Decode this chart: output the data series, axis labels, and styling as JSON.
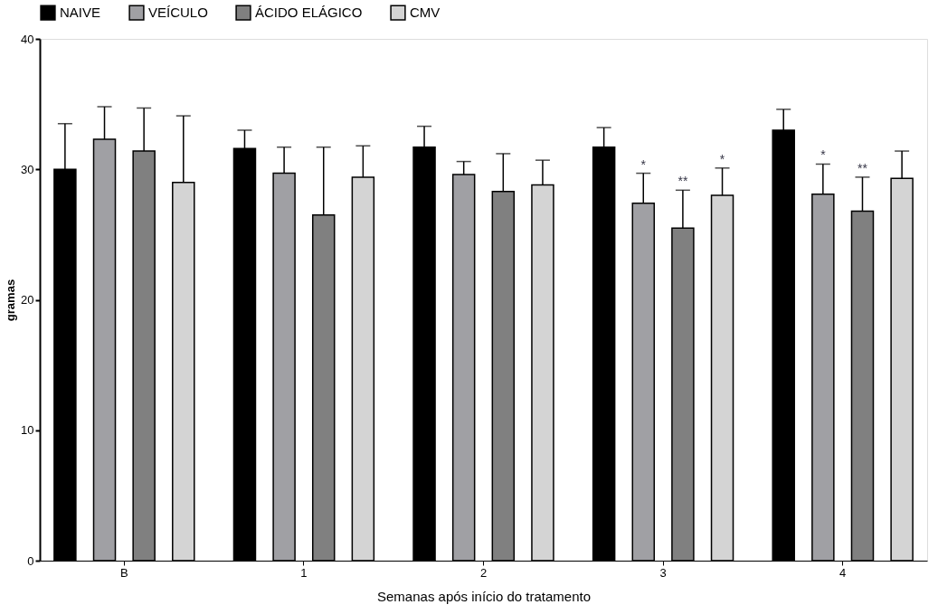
{
  "chart_data": {
    "type": "bar",
    "xlabel": "Semanas após início do tratamento",
    "ylabel": "gramas",
    "categories": [
      "B",
      "1",
      "2",
      "3",
      "4"
    ],
    "series": [
      {
        "name": "NAIVE",
        "color": "#000000",
        "values": [
          30.0,
          31.6,
          31.7,
          31.7,
          33.0
        ],
        "errors": [
          [
            30.0,
            33.5
          ],
          [
            31.6,
            33.0
          ],
          [
            31.7,
            33.3
          ],
          [
            31.7,
            33.2
          ],
          [
            33.0,
            34.6
          ]
        ]
      },
      {
        "name": "VEÍCULO",
        "color": "#a0a0a4",
        "values": [
          32.3,
          29.7,
          29.6,
          27.4,
          28.1
        ],
        "errors": [
          [
            32.3,
            34.8
          ],
          [
            29.7,
            31.7
          ],
          [
            29.6,
            30.6
          ],
          [
            27.4,
            29.7
          ],
          [
            28.1,
            30.4
          ]
        ],
        "value_labels": [
          null,
          null,
          null,
          "*",
          "*"
        ]
      },
      {
        "name": "ÁCIDO ELÁGICO",
        "color": "#808080",
        "values": [
          31.4,
          26.5,
          28.3,
          25.5,
          26.8
        ],
        "errors": [
          [
            31.4,
            34.7
          ],
          [
            26.5,
            31.7
          ],
          [
            28.3,
            31.2
          ],
          [
            25.5,
            28.4
          ],
          [
            26.8,
            29.4
          ]
        ],
        "value_labels": [
          null,
          null,
          null,
          "**",
          "**"
        ]
      },
      {
        "name": "CMV",
        "color": "#d4d4d4",
        "values": [
          29.0,
          29.4,
          28.8,
          28.0,
          29.3
        ],
        "errors": [
          [
            29.0,
            34.1
          ],
          [
            29.4,
            31.8
          ],
          [
            28.8,
            30.7
          ],
          [
            28.0,
            30.1
          ],
          [
            29.3,
            31.4
          ]
        ],
        "value_labels": [
          null,
          null,
          null,
          "*",
          null
        ]
      }
    ],
    "ylim": [
      0,
      40
    ],
    "yticks": [
      0,
      10,
      20,
      30,
      40
    ],
    "grid": false,
    "legend": "top"
  }
}
